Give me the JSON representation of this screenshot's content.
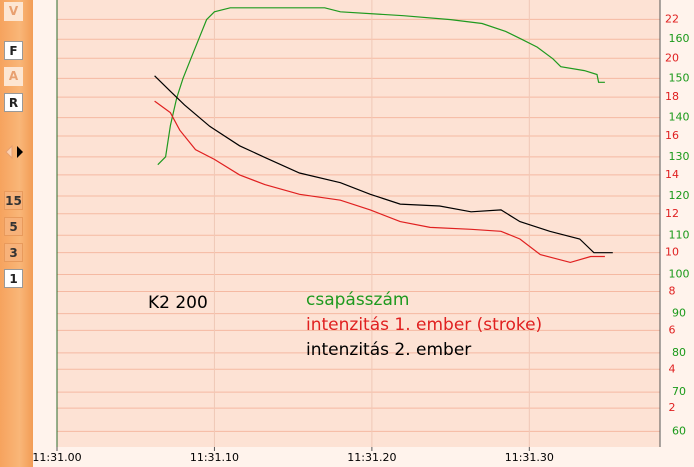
{
  "toolbar": {
    "buttons": [
      "V",
      "F",
      "A",
      "R",
      "15",
      "5",
      "3",
      "1"
    ]
  },
  "chart_data": {
    "type": "line",
    "annotations": [
      "K2 200"
    ],
    "xlim": [
      0,
      38.3
    ],
    "xticks": [
      {
        "value": 0,
        "label": "11:31.00"
      },
      {
        "value": 10,
        "label": "11:31.10"
      },
      {
        "value": 20,
        "label": "11:31.20"
      },
      {
        "value": 30,
        "label": "11:31.30"
      }
    ],
    "ylim": [
      0,
      23
    ],
    "yticks": [
      2,
      4,
      6,
      8,
      10,
      12,
      14,
      16,
      18,
      20,
      22
    ],
    "y2lim": [
      56,
      170
    ],
    "y2ticks": [
      60,
      70,
      80,
      90,
      100,
      110,
      120,
      130,
      140,
      150,
      160
    ],
    "y_color": "#e02020",
    "y2_color": "#1a9a1a",
    "grid": true,
    "series": [
      {
        "name": "csapásszám",
        "color": "#1f9a1f",
        "axis": "y2",
        "x": [
          6.4,
          6.9,
          7.2,
          7.6,
          8.0,
          8.5,
          9.0,
          9.5,
          10.0,
          11,
          17,
          18,
          22,
          25,
          27,
          28.5,
          29.5,
          30.5,
          31.5,
          32,
          33.5,
          34.3,
          34.4,
          34.8
        ],
        "values": [
          128,
          130,
          138,
          145,
          150,
          155,
          160,
          165,
          167,
          168,
          168,
          167,
          166,
          165,
          164,
          162,
          160,
          158,
          155,
          153,
          152,
          151,
          149,
          149
        ]
      },
      {
        "name": "intenzitás 1. ember (stroke)",
        "color": "#e02020",
        "axis": "y",
        "x": [
          6.2,
          7.2,
          7.8,
          8.8,
          10.0,
          11.6,
          13.2,
          15.4,
          18.0,
          19.9,
          21.8,
          23.7,
          26.3,
          28.2,
          29.4,
          30.7,
          32.6,
          33.9,
          34.8
        ],
        "values": [
          17.8,
          17.2,
          16.3,
          15.3,
          14.8,
          14,
          13.5,
          13,
          12.7,
          12.2,
          11.6,
          11.3,
          11.2,
          11.1,
          10.7,
          9.9,
          9.5,
          9.8,
          9.8
        ]
      },
      {
        "name": "intenzitás 2. ember",
        "color": "#000000",
        "axis": "y",
        "x": [
          6.2,
          7.2,
          8.1,
          9.7,
          11.6,
          13.2,
          15.4,
          18.0,
          19.9,
          21.8,
          24.3,
          26.3,
          28.2,
          29.4,
          31.3,
          33.2,
          34.1,
          35.3
        ],
        "values": [
          19.1,
          18.3,
          17.6,
          16.5,
          15.5,
          14.9,
          14.1,
          13.6,
          13,
          12.5,
          12.4,
          12.1,
          12.2,
          11.6,
          11.1,
          10.7,
          10,
          10
        ]
      }
    ]
  }
}
